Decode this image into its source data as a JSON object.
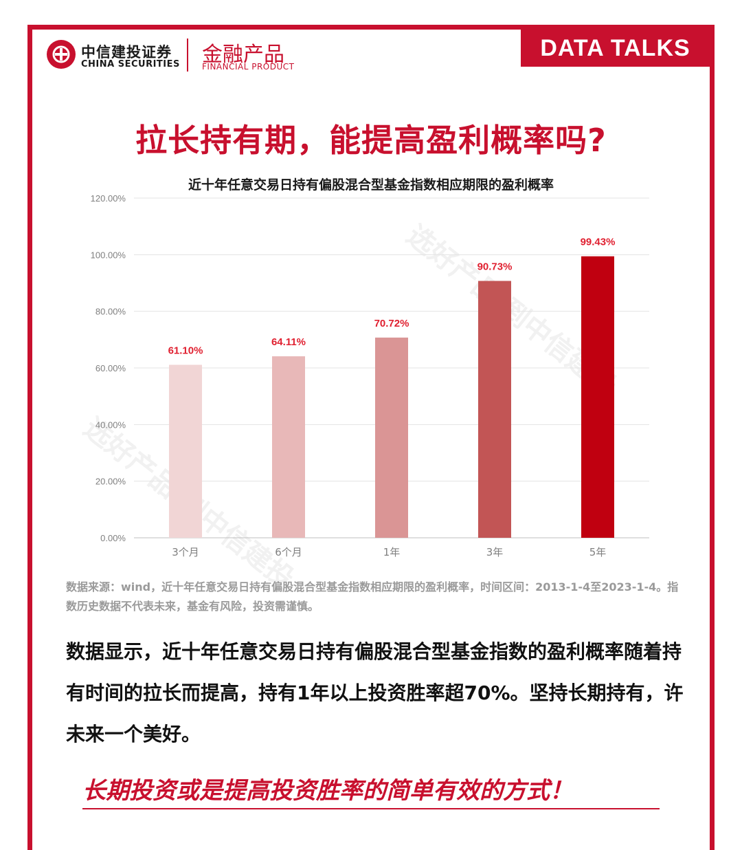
{
  "header": {
    "brand_cn": "中信建投证券",
    "brand_en": "CHINA SECURITIES",
    "product_cn": "金融产品",
    "product_en": "FINANCIAL PRODUCT",
    "badge": "DATA TALKS"
  },
  "main_title": "拉长持有期，能提高盈利概率吗?",
  "watermark": "选好产品 到中信建投",
  "chart_data": {
    "type": "bar",
    "title": "近十年任意交易日持有偏股混合型基金指数相应期限的盈利概率",
    "categories": [
      "3个月",
      "6个月",
      "1年",
      "3年",
      "5年"
    ],
    "values": [
      61.1,
      64.11,
      70.72,
      90.73,
      99.43
    ],
    "data_labels": [
      "61.10%",
      "64.11%",
      "70.72%",
      "90.73%",
      "99.43%"
    ],
    "y_ticks": [
      "0.00%",
      "20.00%",
      "40.00%",
      "60.00%",
      "80.00%",
      "100.00%",
      "120.00%"
    ],
    "ylim": [
      0,
      120
    ],
    "grid": true,
    "bar_colors": [
      "#f1d5d5",
      "#e8b8b8",
      "#da9595",
      "#c25555",
      "#c00010"
    ],
    "label_color": "#e02030",
    "xlabel": "",
    "ylabel": ""
  },
  "source": "数据来源：wind，近十年任意交易日持有偏股混合型基金指数相应期限的盈利概率，时间区间：2013-1-4至2023-1-4。指数历史数据不代表未来，基金有风险，投资需谨慎。",
  "body": "数据显示，近十年任意交易日持有偏股混合型基金指数的盈利概率随着持有时间的拉长而提高，持有1年以上投资胜率超70%。坚持长期持有，许未来一个美好。",
  "slogan": "长期投资或是提高投资胜率的简单有效的方式！"
}
